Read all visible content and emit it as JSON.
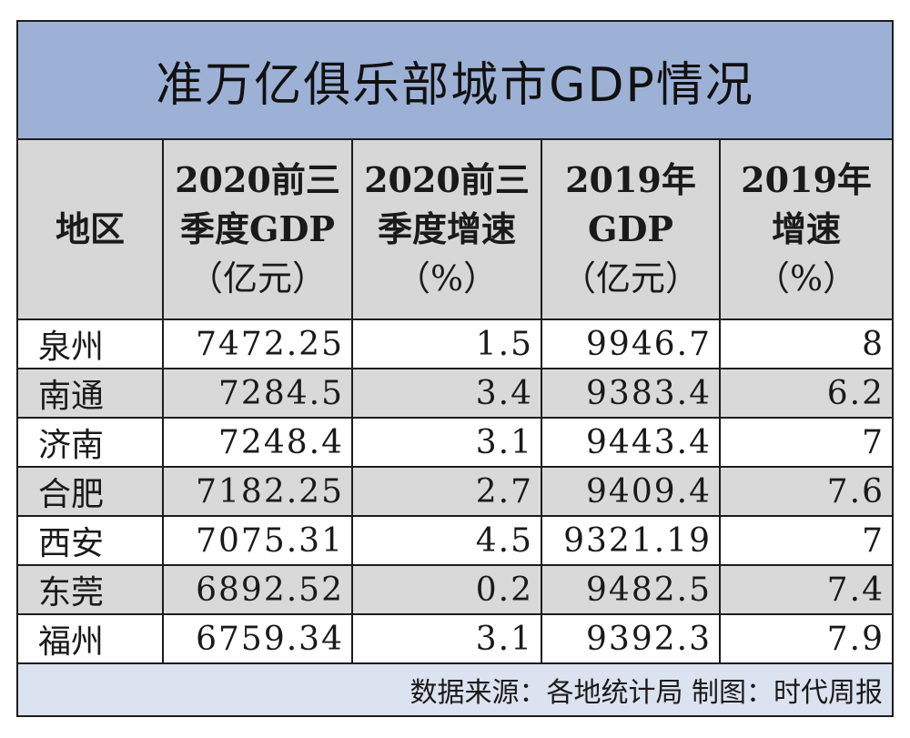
{
  "title": "准万亿俱乐部城市GDP情况",
  "headers": [
    {
      "l1": "地区",
      "l2": "",
      "l3": ""
    },
    {
      "l1": "2020前三",
      "l2": "季度GDP",
      "l3": "（亿元）"
    },
    {
      "l1": "2020前三",
      "l2": "季度增速",
      "l3": "（%）"
    },
    {
      "l1": "2019年",
      "l2": "GDP",
      "l3": "（亿元）"
    },
    {
      "l1": "2019年",
      "l2": "增速",
      "l3": "（%）"
    }
  ],
  "rows": [
    {
      "city": "泉州",
      "gdp_2020q3": "7472.25",
      "growth_2020q3": "1.5",
      "gdp_2019": "9946.7",
      "growth_2019": "8"
    },
    {
      "city": "南通",
      "gdp_2020q3": "7284.5",
      "growth_2020q3": "3.4",
      "gdp_2019": "9383.4",
      "growth_2019": "6.2"
    },
    {
      "city": "济南",
      "gdp_2020q3": "7248.4",
      "growth_2020q3": "3.1",
      "gdp_2019": "9443.4",
      "growth_2019": "7"
    },
    {
      "city": "合肥",
      "gdp_2020q3": "7182.25",
      "growth_2020q3": "2.7",
      "gdp_2019": "9409.4",
      "growth_2019": "7.6"
    },
    {
      "city": "西安",
      "gdp_2020q3": "7075.31",
      "growth_2020q3": "4.5",
      "gdp_2019": "9321.19",
      "growth_2019": "7"
    },
    {
      "city": "东莞",
      "gdp_2020q3": "6892.52",
      "growth_2020q3": "0.2",
      "gdp_2019": "9482.5",
      "growth_2019": "7.4"
    },
    {
      "city": "福州",
      "gdp_2020q3": "6759.34",
      "growth_2020q3": "3.1",
      "gdp_2019": "9392.3",
      "growth_2019": "7.9"
    }
  ],
  "source": "数据来源：各地统计局  制图：时代周报",
  "colors": {
    "title_bg": "#9db1d6",
    "header_bg": "#d7d7d7",
    "stripe_bg": "#d9d9d9",
    "footer_bg": "#dce3f0"
  }
}
